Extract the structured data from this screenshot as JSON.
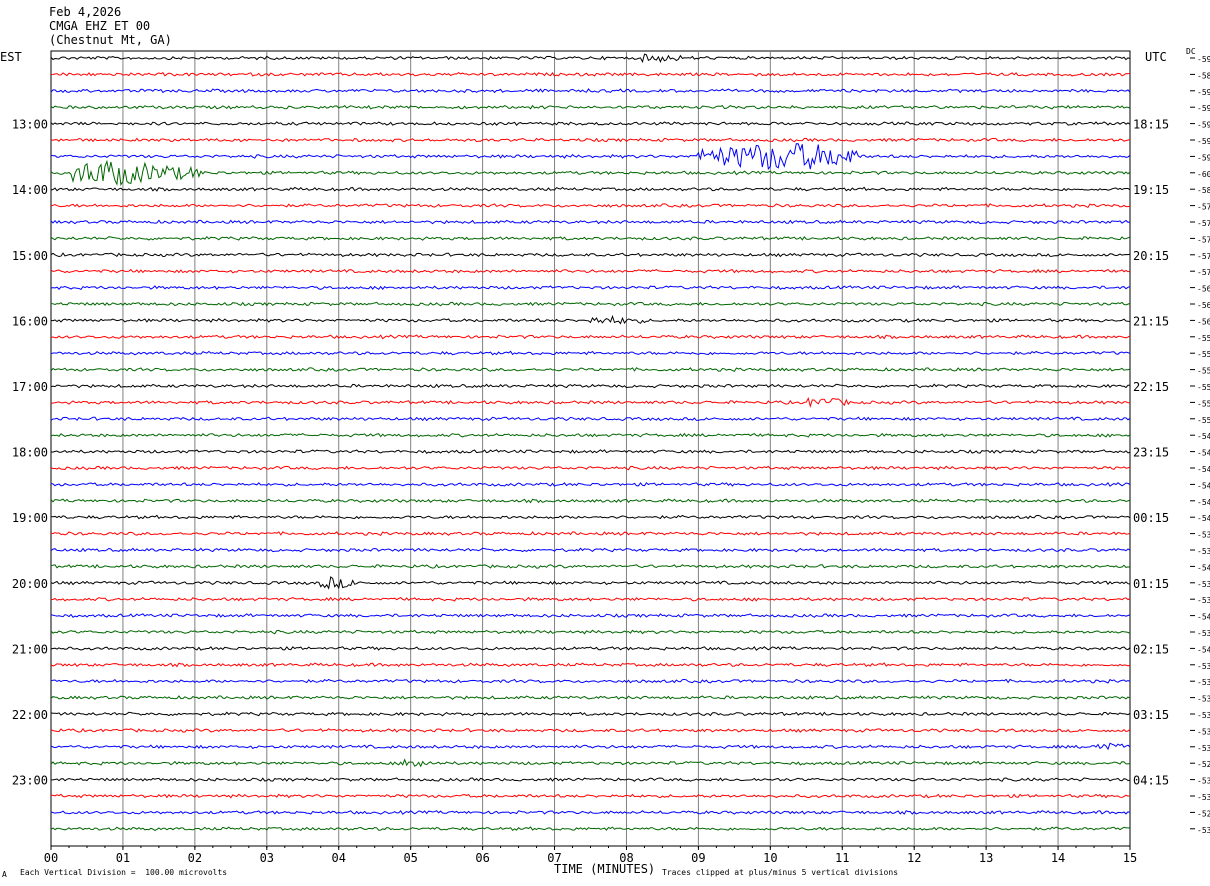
{
  "header": {
    "date": "Feb 4,2026",
    "station": "CMGA EHZ ET 00",
    "location": "(Chestnut Mt, GA)"
  },
  "labels": {
    "left_zone": "EST",
    "right_zone": "UTC",
    "dc_header": "DC"
  },
  "footer": {
    "scale_note": "Each Vertical Division =  100.00 microvolts",
    "clip_note": "Traces clipped at plus/minus 5 vertical divisions",
    "corner_mark": "A"
  },
  "colors": {
    "trace_cycle": [
      "#000000",
      "#ff0000",
      "#0000ff",
      "#006600"
    ],
    "grid": "#808080"
  },
  "chart_data": {
    "type": "line",
    "title": "CMGA EHZ ET 00 (Chestnut Mt, GA)",
    "xlabel": "TIME (MINUTES)",
    "xlim": [
      0,
      15
    ],
    "x_ticks": [
      "00",
      "01",
      "02",
      "03",
      "04",
      "05",
      "06",
      "07",
      "08",
      "09",
      "10",
      "11",
      "12",
      "13",
      "14",
      "15"
    ],
    "rows_per_hour": 4,
    "row_count": 48,
    "left_hour_labels": [
      {
        "row": 4,
        "label": "13:00"
      },
      {
        "row": 8,
        "label": "14:00"
      },
      {
        "row": 12,
        "label": "15:00"
      },
      {
        "row": 16,
        "label": "16:00"
      },
      {
        "row": 20,
        "label": "17:00"
      },
      {
        "row": 24,
        "label": "18:00"
      },
      {
        "row": 28,
        "label": "19:00"
      },
      {
        "row": 32,
        "label": "20:00"
      },
      {
        "row": 36,
        "label": "21:00"
      },
      {
        "row": 40,
        "label": "22:00"
      },
      {
        "row": 44,
        "label": "23:00"
      }
    ],
    "right_hour_labels": [
      {
        "row": 4,
        "label": "18:15"
      },
      {
        "row": 8,
        "label": "19:15"
      },
      {
        "row": 12,
        "label": "20:15"
      },
      {
        "row": 16,
        "label": "21:15"
      },
      {
        "row": 20,
        "label": "22:15"
      },
      {
        "row": 24,
        "label": "23:15"
      },
      {
        "row": 28,
        "label": "00:15"
      },
      {
        "row": 32,
        "label": "01:15"
      },
      {
        "row": 36,
        "label": "02:15"
      },
      {
        "row": 40,
        "label": "03:15"
      },
      {
        "row": 44,
        "label": "04:15"
      }
    ],
    "dc_offsets": [
      "-59",
      "-58",
      "-59",
      "-59",
      "-59",
      "-59",
      "-59",
      "-60",
      "-58",
      "-57",
      "-57",
      "-57",
      "-57",
      "-57",
      "-56",
      "-56",
      "-56",
      "-55",
      "-55",
      "-55",
      "-55",
      "-55",
      "-55",
      "-54",
      "-54",
      "-54",
      "-54",
      "-54",
      "-54",
      "-53",
      "-53",
      "-54",
      "-53",
      "-53",
      "-54",
      "-53",
      "-54",
      "-53",
      "-53",
      "-53",
      "-53",
      "-53",
      "-53",
      "-52",
      "-53",
      "-53",
      "-52",
      "-53"
    ],
    "events": [
      {
        "row": 0,
        "minute": 8.2,
        "duration": 0.6,
        "amplitude": 3
      },
      {
        "row": 6,
        "minute": 9.0,
        "duration": 2.2,
        "amplitude": 14,
        "peak_minute": 10.2
      },
      {
        "row": 7,
        "minute": 0.3,
        "duration": 1.8,
        "amplitude": 12,
        "peak_minute": 0.8
      },
      {
        "row": 16,
        "minute": 7.5,
        "duration": 0.8,
        "amplitude": 3
      },
      {
        "row": 21,
        "minute": 10.5,
        "duration": 0.6,
        "amplitude": 4
      },
      {
        "row": 32,
        "minute": 3.7,
        "duration": 0.6,
        "amplitude": 5
      },
      {
        "row": 42,
        "minute": 14.5,
        "duration": 0.4,
        "amplitude": 5
      },
      {
        "row": 43,
        "minute": 4.9,
        "duration": 0.4,
        "amplitude": 5
      }
    ]
  }
}
